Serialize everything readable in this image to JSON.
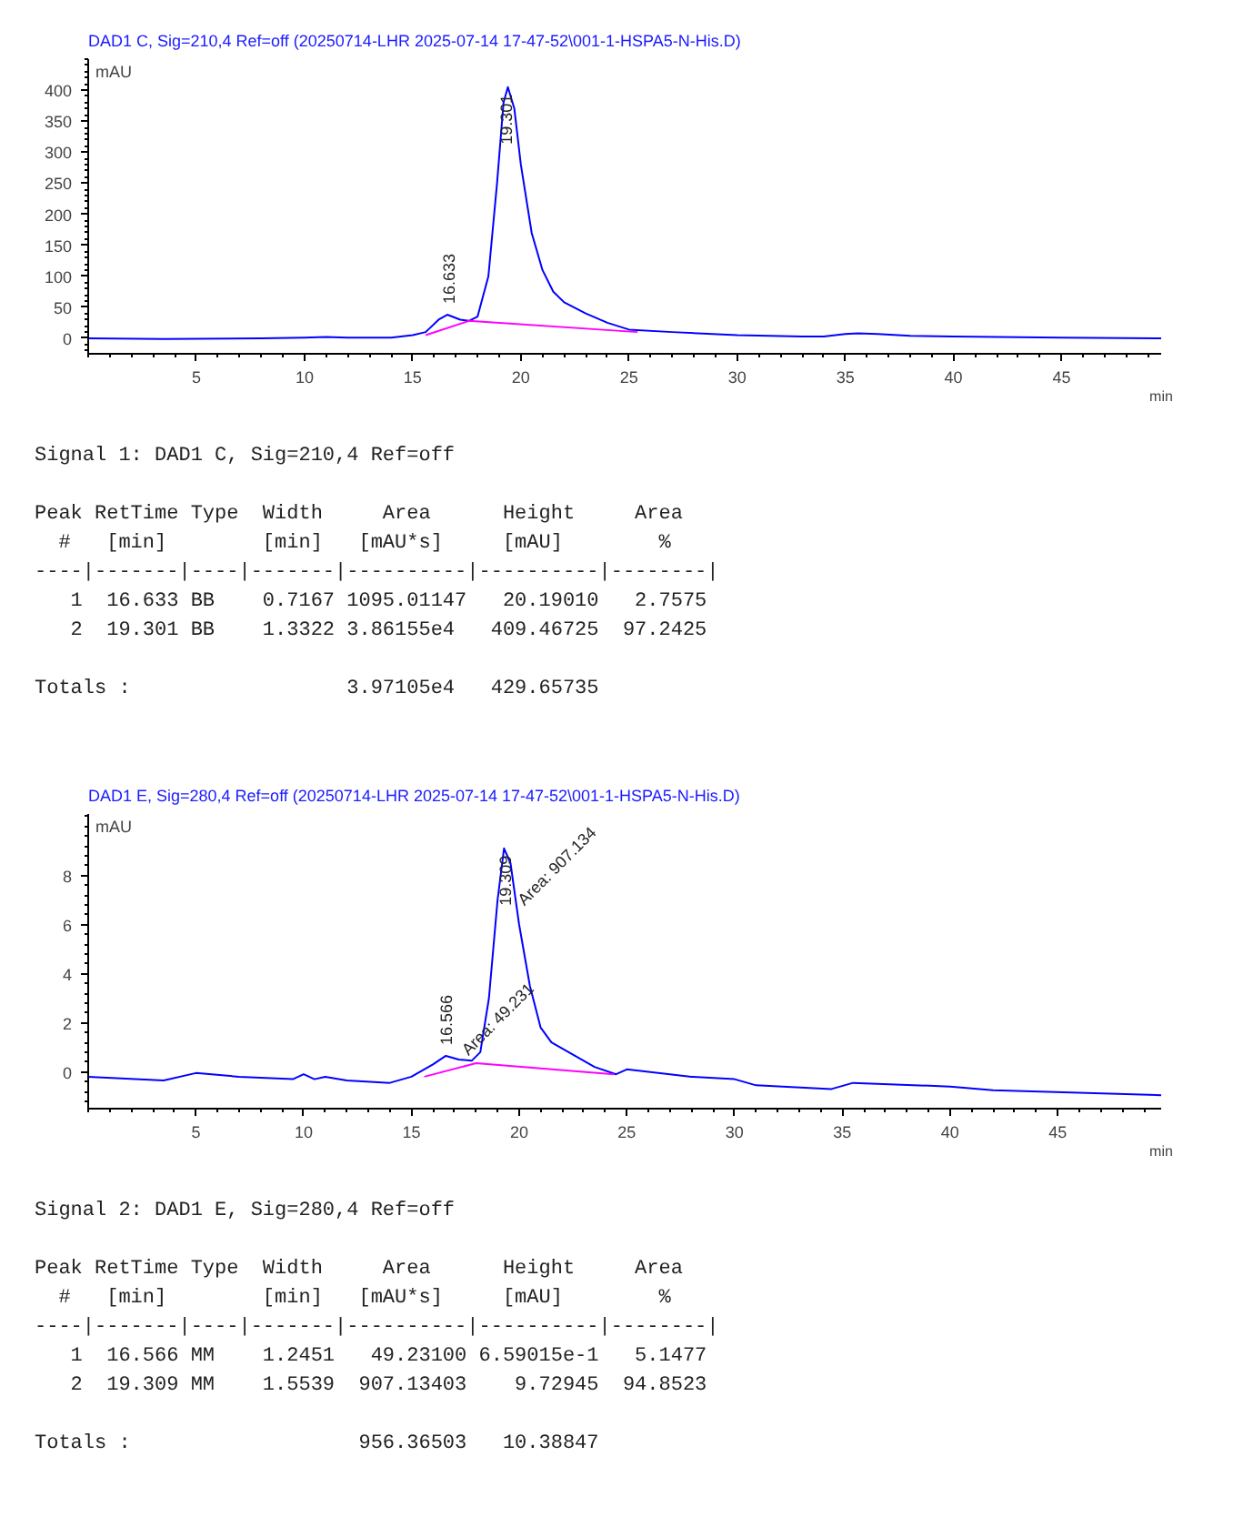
{
  "chart_data": [
    {
      "type": "line",
      "title": "DAD1 C, Sig=210,4 Ref=off (20250714-LHR 2025-07-14 17-47-52\\001-1-HSPA5-N-His.D)",
      "xlabel": "min",
      "ylabel": "mAU",
      "xlim": [
        0,
        49.6
      ],
      "ylim": [
        -25,
        450
      ],
      "xticks": [
        5,
        10,
        15,
        20,
        25,
        30,
        35,
        40,
        45
      ],
      "yticks": [
        0,
        50,
        100,
        150,
        200,
        250,
        300,
        350,
        400
      ],
      "grid": false,
      "series": [
        {
          "color": "#0000ff",
          "x": [
            0,
            3.5,
            8,
            10,
            11,
            12,
            14,
            15,
            15.6,
            16.2,
            16.6,
            17.2,
            17.6,
            18.0,
            18.5,
            18.9,
            19.2,
            19.4,
            19.7,
            20.0,
            20.5,
            21,
            21.5,
            22,
            23,
            24,
            25,
            27,
            30,
            33,
            34,
            35,
            35.6,
            36.5,
            38,
            40,
            45,
            49.6
          ],
          "values": [
            0,
            -1,
            0,
            1,
            2,
            1,
            1,
            5,
            10,
            30,
            38,
            30,
            28,
            35,
            100,
            250,
            380,
            405,
            370,
            280,
            170,
            110,
            75,
            58,
            40,
            25,
            14,
            10,
            5,
            3,
            3,
            7,
            8,
            7,
            4,
            3,
            1,
            0
          ]
        },
        {
          "color": "#ff00ff",
          "x": [
            15.6,
            17.6,
            25.4
          ],
          "values": [
            5,
            28,
            10
          ]
        }
      ],
      "annotations": [
        {
          "text": "16.633",
          "x": 16.633,
          "y": 38
        },
        {
          "text": "19.301",
          "x": 19.301,
          "y": 405
        },
        "Signal 1: DAD1 C, Sig=210,4 Ref=off",
        "Peak RetTime Type  Width     Area      Height     Area",
        "  #   [min]        [min]   [mAU*s]     [mAU]        %",
        "----|-------|----|-------|----------|----------|--------|",
        "   1  16.633 BB    0.7167 1095.01147   20.19010   2.7575",
        "   2  19.301 BB    1.3322 3.86155e4   409.46725  97.2425",
        "Totals :                  3.97105e4   429.65735"
      ]
    },
    {
      "type": "line",
      "title": "DAD1 E, Sig=280,4 Ref=off (20250714-LHR 2025-07-14 17-47-52\\001-1-HSPA5-N-His.D)",
      "xlabel": "min",
      "ylabel": "mAU",
      "xlim": [
        0,
        49.8
      ],
      "ylim": [
        -1.5,
        10.5
      ],
      "xticks": [
        5,
        10,
        15,
        20,
        25,
        30,
        35,
        40,
        45
      ],
      "yticks": [
        0,
        2,
        4,
        6,
        8
      ],
      "grid": false,
      "series": [
        {
          "color": "#0000ff",
          "x": [
            0,
            3.5,
            5,
            7,
            9.5,
            10,
            10.5,
            11,
            12,
            14,
            15,
            16,
            16.6,
            17.2,
            17.8,
            18.2,
            18.6,
            19.0,
            19.3,
            19.6,
            20.0,
            20.5,
            21,
            21.5,
            22.5,
            23.5,
            24.5,
            25,
            26,
            28,
            30,
            31,
            34.5,
            35.5,
            40,
            42,
            49.8
          ],
          "values": [
            -0.2,
            -0.35,
            -0.05,
            -0.2,
            -0.3,
            -0.1,
            -0.3,
            -0.2,
            -0.35,
            -0.45,
            -0.2,
            0.3,
            0.65,
            0.5,
            0.45,
            0.8,
            3,
            7,
            9.1,
            8.5,
            6,
            3.5,
            1.8,
            1.2,
            0.7,
            0.2,
            -0.1,
            0.1,
            0,
            -0.2,
            -0.3,
            -0.55,
            -0.7,
            -0.45,
            -0.6,
            -0.75,
            -0.95
          ]
        },
        {
          "color": "#ff00ff",
          "x": [
            15.6,
            18,
            24.4
          ],
          "values": [
            -0.2,
            0.35,
            -0.1
          ]
        }
      ],
      "annotations": [
        {
          "text": "16.566",
          "x": 16.566,
          "y": 0.65
        },
        {
          "text": "Area: 49.231",
          "x": 17.3,
          "y": 0.5
        },
        {
          "text": "19.309",
          "x": 19.309,
          "y": 9.1
        },
        {
          "text": "Area: 907.134",
          "x": 19.9,
          "y": 6.6
        },
        "Signal 2: DAD1 E, Sig=280,4 Ref=off",
        "Peak RetTime Type  Width     Area      Height     Area",
        "  #   [min]        [min]   [mAU*s]     [mAU]        %",
        "----|-------|----|-------|----------|----------|--------|",
        "   1  16.566 MM    1.2451   49.23100 6.59015e-1   5.1477",
        "   2  19.309 MM    1.5539  907.13403    9.72945  94.8523",
        "Totals :                   956.36503   10.38847"
      ]
    }
  ]
}
